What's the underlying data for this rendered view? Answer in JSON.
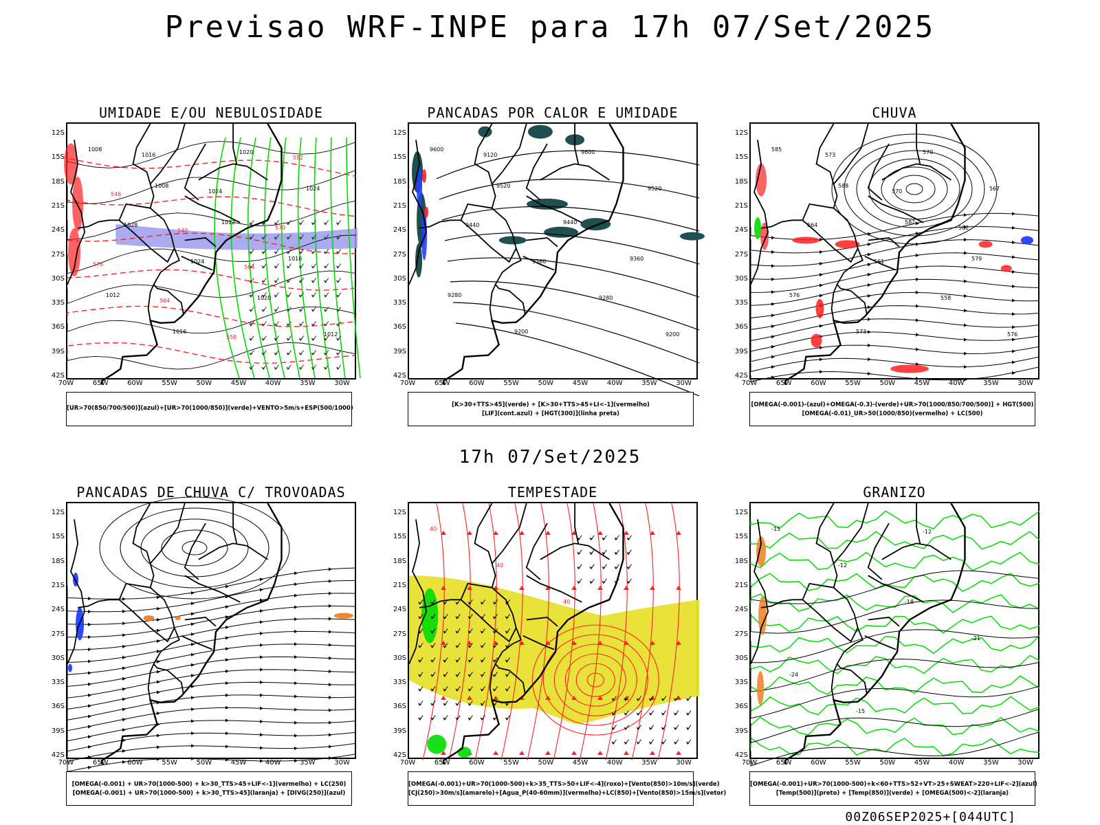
{
  "header": {
    "title": "Previsao WRF-INPE  para 17h 07/Set/2025",
    "mid_title": "17h 07/Set/2025",
    "footer_stamp": "00Z06SEP2025+[044UTC]"
  },
  "axes": {
    "lat_labels": [
      "12S",
      "15S",
      "18S",
      "21S",
      "24S",
      "27S",
      "30S",
      "33S",
      "36S",
      "39S",
      "42S"
    ],
    "lon_labels": [
      "70W",
      "65W",
      "60W",
      "55W",
      "50W",
      "45W",
      "40W",
      "35W",
      "30W"
    ]
  },
  "colors": {
    "green": "#00dd00",
    "red": "#ff2020",
    "blue": "#2040ff",
    "lavender": "#9c9cf0",
    "darkteal": "#1f4f4f",
    "yellow": "#e8e030",
    "orange": "#f08020"
  },
  "panels": [
    {
      "title": "UMIDADE E/OU NEBULOSIDADE",
      "legend": [
        "[UR>70(850/700/500)](azul)+[UR>70(1000/850)](verde)+VENTO>5m/s+ESP(500/1000)"
      ],
      "contour_labels": [
        "1008",
        "1008",
        "1012",
        "1016",
        "1012",
        "1016",
        "1020",
        "1024",
        "1028",
        "1024",
        "1020",
        "1012",
        "1016",
        "1024",
        "570",
        "576",
        "564",
        "558",
        "552",
        "546",
        "540",
        "564"
      ]
    },
    {
      "title": "PANCADAS POR CALOR E UMIDADE",
      "legend": [
        "[K>30+TTS>45](verde) + [K>30+TTS>45+LI<-1](vermelho)",
        "[LIF](cont.azul) + [HGT(300)](linha preta)"
      ],
      "contour_labels": [
        "9600",
        "9520",
        "9440",
        "9360",
        "9280",
        "9200",
        "9600",
        "9520",
        "9440",
        "9360",
        "9280",
        "9200",
        "9120"
      ]
    },
    {
      "title": "CHUVA",
      "legend": [
        "[OMEGA(-0.001)-(azul)+OMEGA(-0.3)-(verde)+UR>70(1000/850/700/500)] + HGT(500)",
        "[OMEGA(-0.01)_UR>50(1000/850)(vermelho) + LC(500)"
      ],
      "contour_labels": [
        "585",
        "588",
        "582",
        "579",
        "576",
        "573",
        "570",
        "567",
        "564",
        "561",
        "558",
        "576",
        "573",
        "570",
        "582"
      ]
    },
    {
      "title": "PANCADAS DE CHUVA C/ TROVOADAS",
      "legend": [
        "[OMEGA(-0.001) + UR>70(1000-500) + k>30_TTS>45+LIF<-1](vermelho) + LC(250)",
        "[OMEGA(-0.001) + UR>70(1000-500) + k>30_TTS>45](laranja) + [DIVG(250)](azul)"
      ],
      "contour_labels": []
    },
    {
      "title": "TEMPESTADE",
      "legend": [
        "[OMEGA(-0.001)+UR>70(1000-500)+k>35_TTS>50+LIF<-4](roxo)+[Vento(850)>10m/s](verde)",
        "[CJ(250)>30m/s](amarelo)+[Agua_P(40-60mm)](vermelho)+LC(850)+[Vento(850)>15m/s](vetor)"
      ],
      "contour_labels": [
        "40",
        "40",
        "40"
      ]
    },
    {
      "title": "GRANIZO",
      "legend": [
        "[OMEGA(-0.001)+UR>70(1000-500)+k<60+TTS>52+VT>25+SWEAT>220+LIF<-2](azul)",
        "[Temp(500)](preto) + [Temp(850)](verde) + [OMEGA(500)<-2](laranja)"
      ],
      "contour_labels": [
        "-15",
        "-12",
        "-18",
        "-21",
        "-24",
        "-15",
        "-12"
      ]
    }
  ]
}
